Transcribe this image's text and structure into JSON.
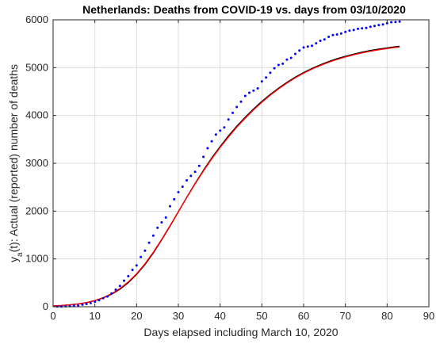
{
  "chart_data": {
    "type": "line",
    "title": "Netherlands: Deaths from COVID-19 vs. days from 03/10/2020",
    "xlabel": "Days elapsed including March 10, 2020",
    "ylabel": {
      "prefix": "y",
      "subscript": "a",
      "suffix": "(t): Actual (reported) number of deaths"
    },
    "xlim": [
      0,
      90
    ],
    "ylim": [
      0,
      6000
    ],
    "xticks": [
      0,
      10,
      20,
      30,
      40,
      50,
      60,
      70,
      80,
      90
    ],
    "yticks": [
      0,
      1000,
      2000,
      3000,
      4000,
      5000,
      6000
    ],
    "grid": true,
    "series": [
      {
        "style": "dots",
        "color": "#0000ff",
        "x": [
          1,
          2,
          3,
          4,
          5,
          6,
          7,
          8,
          9,
          10,
          11,
          12,
          13,
          14,
          15,
          16,
          17,
          18,
          19,
          20,
          21,
          22,
          23,
          24,
          25,
          26,
          27,
          28,
          29,
          30,
          31,
          32,
          33,
          34,
          35,
          36,
          37,
          38,
          39,
          40,
          41,
          42,
          43,
          44,
          45,
          46,
          47,
          48,
          49,
          50,
          51,
          52,
          53,
          54,
          55,
          56,
          57,
          58,
          59,
          60,
          61,
          62,
          63,
          64,
          65,
          66,
          67,
          68,
          69,
          70,
          71,
          72,
          73,
          74,
          75,
          76,
          77,
          78,
          79,
          80,
          81,
          82,
          83
        ],
        "y": [
          4,
          5,
          10,
          12,
          20,
          24,
          43,
          58,
          76,
          106,
          136,
          179,
          213,
          276,
          356,
          434,
          546,
          639,
          771,
          864,
          1039,
          1173,
          1339,
          1487,
          1651,
          1766,
          1867,
          2101,
          2248,
          2396,
          2511,
          2643,
          2737,
          2823,
          2945,
          3134,
          3315,
          3459,
          3601,
          3684,
          3751,
          3916,
          4054,
          4177,
          4289,
          4409,
          4475,
          4518,
          4566,
          4711,
          4795,
          4893,
          4987,
          5056,
          5082,
          5168,
          5204,
          5288,
          5359,
          5422,
          5440,
          5456,
          5510,
          5562,
          5590,
          5643,
          5680,
          5694,
          5715,
          5748,
          5775,
          5787,
          5811,
          5822,
          5830,
          5856,
          5871,
          5890,
          5903,
          5931,
          5951,
          5956,
          5962
        ]
      },
      {
        "style": "line",
        "color": "#000000",
        "model": "logistic-fit",
        "x": [
          0,
          2,
          4,
          6,
          8,
          10,
          12,
          14,
          16,
          18,
          20,
          22,
          24,
          26,
          28,
          30,
          32,
          34,
          36,
          38,
          40,
          42,
          44,
          46,
          48,
          50,
          52,
          54,
          56,
          58,
          60,
          62,
          64,
          66,
          68,
          70,
          72,
          74,
          76,
          78,
          80,
          82,
          83
        ],
        "y": [
          18,
          27,
          40,
          60,
          87,
          127,
          184,
          262,
          367,
          503,
          674,
          882,
          1124,
          1395,
          1685,
          1985,
          2285,
          2577,
          2853,
          3111,
          3350,
          3571,
          3775,
          3962,
          4135,
          4294,
          4439,
          4572,
          4692,
          4800,
          4897,
          4983,
          5059,
          5127,
          5186,
          5238,
          5283,
          5323,
          5358,
          5388,
          5414,
          5437,
          5447
        ]
      },
      {
        "style": "line",
        "color": "#ff0000",
        "model": "alternative-fit",
        "x": [
          0,
          2,
          4,
          6,
          8,
          10,
          12,
          14,
          16,
          18,
          20,
          22,
          24,
          26,
          28,
          30,
          32,
          34,
          36,
          38,
          40,
          42,
          44,
          46,
          48,
          50,
          52,
          54,
          56,
          58,
          60,
          62,
          64,
          66,
          68,
          70,
          72,
          74,
          76,
          78,
          80,
          82,
          83
        ],
        "y": [
          16,
          25,
          38,
          58,
          87,
          130,
          190,
          272,
          380,
          518,
          690,
          898,
          1139,
          1407,
          1694,
          1989,
          2283,
          2569,
          2840,
          3094,
          3331,
          3551,
          3755,
          3943,
          4117,
          4277,
          4424,
          4557,
          4678,
          4787,
          4884,
          4970,
          5046,
          5113,
          5172,
          5224,
          5269,
          5309,
          5344,
          5374,
          5400,
          5423,
          5433
        ]
      }
    ]
  }
}
